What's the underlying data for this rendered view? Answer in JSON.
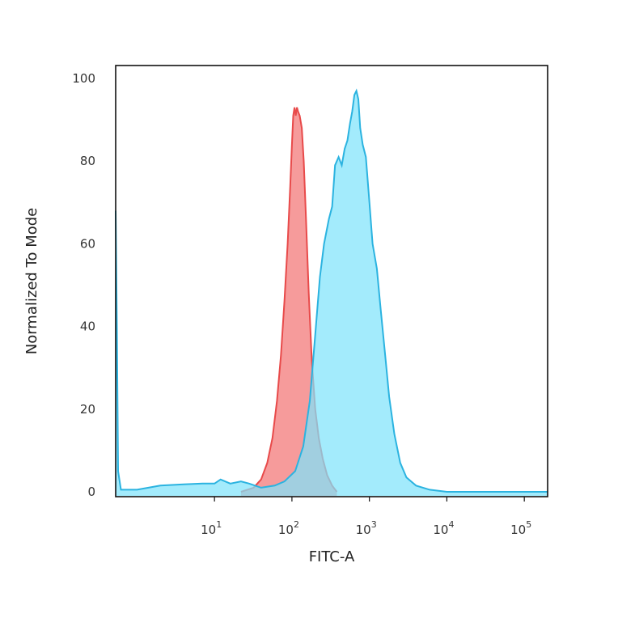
{
  "chart_data": {
    "type": "area",
    "xlabel": "FITC-A",
    "ylabel": "Normalized To Mode",
    "xscale": "log",
    "xlim": [
      0.53,
      200000
    ],
    "ylim": [
      0,
      100
    ],
    "grid": false,
    "legend": "none",
    "y_ticks": [
      "0",
      "20",
      "40",
      "60",
      "80",
      "100"
    ],
    "y_tick_values": [
      0,
      20,
      40,
      60,
      80,
      100
    ],
    "x_ticks": [
      {
        "base": "10",
        "exp": "1",
        "value": 10
      },
      {
        "base": "10",
        "exp": "2",
        "value": 100
      },
      {
        "base": "10",
        "exp": "3",
        "value": 1000
      },
      {
        "base": "10",
        "exp": "4",
        "value": 10000
      },
      {
        "base": "10",
        "exp": "5",
        "value": 100000
      }
    ],
    "series": [
      {
        "color": "#e84a4a",
        "fill": "#f58a8a",
        "points": [
          [
            22,
            0
          ],
          [
            32,
            1
          ],
          [
            40,
            3
          ],
          [
            48,
            7
          ],
          [
            56,
            13
          ],
          [
            64,
            22
          ],
          [
            72,
            33
          ],
          [
            80,
            46
          ],
          [
            88,
            60
          ],
          [
            95,
            74
          ],
          [
            100,
            84
          ],
          [
            104,
            91
          ],
          [
            108,
            93
          ],
          [
            112,
            91
          ],
          [
            116,
            93
          ],
          [
            120,
            92
          ],
          [
            126,
            91
          ],
          [
            134,
            88
          ],
          [
            142,
            80
          ],
          [
            152,
            66
          ],
          [
            165,
            48
          ],
          [
            180,
            32
          ],
          [
            200,
            20
          ],
          [
            222,
            13
          ],
          [
            250,
            8
          ],
          [
            285,
            4
          ],
          [
            330,
            1.5
          ],
          [
            380,
            0
          ]
        ]
      },
      {
        "color": "#2bb3e0",
        "fill": "#7fe3fb",
        "points": [
          [
            0.53,
            68
          ],
          [
            0.55,
            40
          ],
          [
            0.57,
            5
          ],
          [
            0.62,
            0.5
          ],
          [
            0.8,
            0.5
          ],
          [
            1.0,
            0.5
          ],
          [
            2,
            1.5
          ],
          [
            4,
            1.8
          ],
          [
            7,
            2
          ],
          [
            10,
            2
          ],
          [
            12,
            3
          ],
          [
            16,
            2
          ],
          [
            22,
            2.5
          ],
          [
            28,
            2
          ],
          [
            40,
            1
          ],
          [
            60,
            1.5
          ],
          [
            80,
            2.5
          ],
          [
            110,
            5
          ],
          [
            140,
            11
          ],
          [
            170,
            22
          ],
          [
            200,
            38
          ],
          [
            230,
            52
          ],
          [
            260,
            60
          ],
          [
            300,
            66
          ],
          [
            330,
            69
          ],
          [
            360,
            79
          ],
          [
            400,
            81
          ],
          [
            440,
            79
          ],
          [
            480,
            83
          ],
          [
            520,
            85
          ],
          [
            560,
            89
          ],
          [
            600,
            92
          ],
          [
            640,
            96
          ],
          [
            680,
            97
          ],
          [
            720,
            95
          ],
          [
            760,
            88
          ],
          [
            820,
            84
          ],
          [
            900,
            81
          ],
          [
            1000,
            70
          ],
          [
            1100,
            60
          ],
          [
            1250,
            54
          ],
          [
            1400,
            44
          ],
          [
            1600,
            33
          ],
          [
            1800,
            23
          ],
          [
            2100,
            14
          ],
          [
            2500,
            7
          ],
          [
            3000,
            3.5
          ],
          [
            4000,
            1.5
          ],
          [
            6000,
            0.5
          ],
          [
            10000,
            0
          ],
          [
            200000,
            0
          ]
        ]
      }
    ]
  }
}
